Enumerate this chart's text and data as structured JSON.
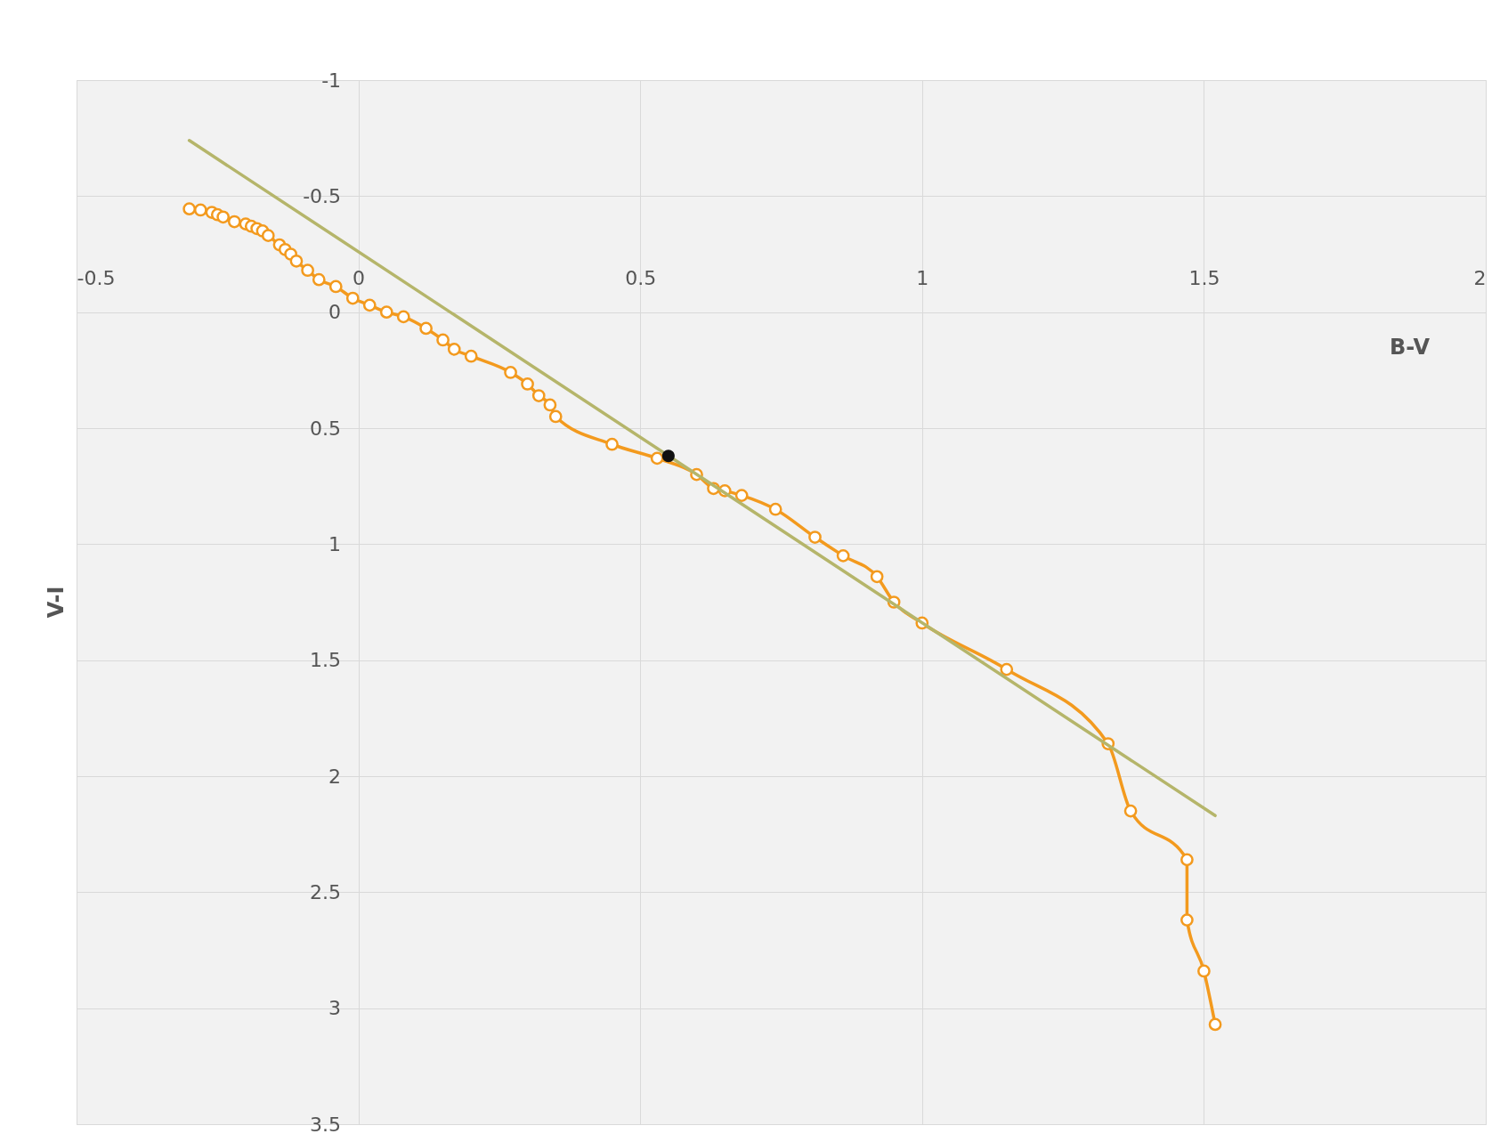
{
  "chart_data": {
    "type": "line",
    "xlabel": "B-V",
    "ylabel": "V-I",
    "xlim": [
      -0.5,
      2
    ],
    "xticks": [
      -0.5,
      0,
      0.5,
      1,
      1.5,
      2
    ],
    "ylim": [
      3.5,
      -1
    ],
    "yticks": [
      -1,
      -0.5,
      0,
      0.5,
      1,
      1.5,
      2,
      2.5,
      3,
      3.5
    ],
    "grid": true,
    "series": [
      {
        "color": "#f39a1e",
        "marker": "circle",
        "line_style": "solid",
        "x": [
          -0.3,
          -0.28,
          -0.26,
          -0.25,
          -0.24,
          -0.22,
          -0.2,
          -0.19,
          -0.18,
          -0.17,
          -0.16,
          -0.14,
          -0.13,
          -0.12,
          -0.11,
          -0.09,
          -0.07,
          -0.04,
          -0.01,
          0.02,
          0.05,
          0.08,
          0.12,
          0.15,
          0.17,
          0.2,
          0.27,
          0.3,
          0.32,
          0.34,
          0.35,
          0.45,
          0.53,
          0.6,
          0.63,
          0.65,
          0.68,
          0.74,
          0.81,
          0.86,
          0.92,
          0.95,
          1.0,
          1.15,
          1.33,
          1.37,
          1.47,
          1.47,
          1.5,
          1.52
        ],
        "values": [
          -0.445,
          -0.44,
          -0.43,
          -0.42,
          -0.41,
          -0.39,
          -0.38,
          -0.37,
          -0.36,
          -0.35,
          -0.33,
          -0.29,
          -0.27,
          -0.25,
          -0.22,
          -0.18,
          -0.14,
          -0.11,
          -0.06,
          -0.03,
          0.0,
          0.02,
          0.07,
          0.12,
          0.16,
          0.19,
          0.26,
          0.31,
          0.36,
          0.4,
          0.45,
          0.57,
          0.63,
          0.7,
          0.76,
          0.77,
          0.79,
          0.85,
          0.97,
          1.05,
          1.14,
          1.25,
          1.34,
          1.54,
          1.86,
          2.15,
          2.36,
          2.62,
          2.84,
          3.07
        ]
      },
      {
        "type": "line",
        "color": "#b5b56a",
        "marker": "none",
        "line_style": "solid",
        "x": [
          -0.3,
          1.52
        ],
        "values": [
          -0.74,
          2.17
        ]
      },
      {
        "type": "scatter",
        "color": "#111111",
        "marker": "circle",
        "x": [
          0.55
        ],
        "values": [
          0.62
        ]
      }
    ]
  }
}
